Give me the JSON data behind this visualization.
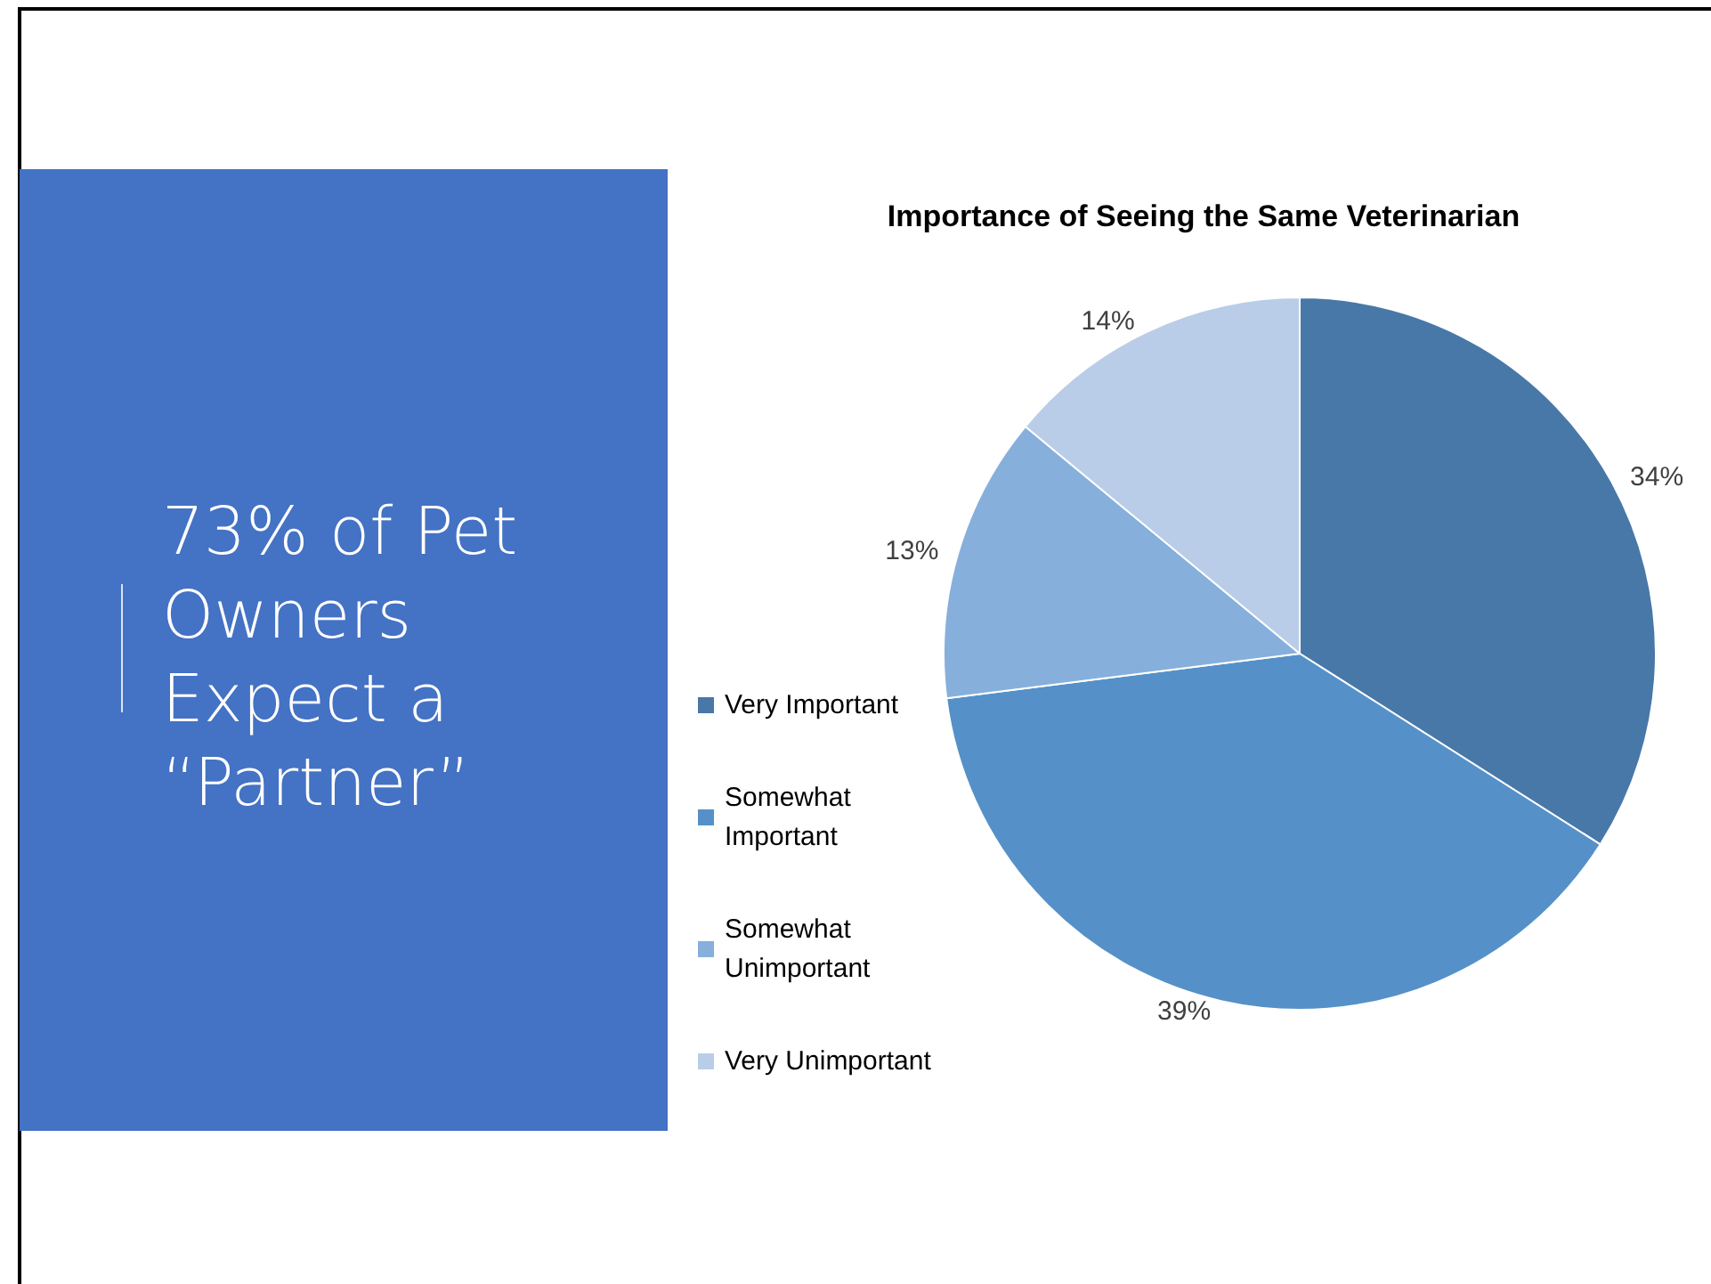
{
  "chart_data": [
    {
      "type": "other",
      "title": "73% of Pet Owners Expect a “Partner”"
    },
    {
      "type": "pie",
      "title": "Importance of Seeing the Same Veterinarian",
      "categories": [
        "Very Important",
        "Somewhat Important",
        "Somewhat Unimportant",
        "Very Unimportant"
      ],
      "values": [
        34,
        39,
        13,
        14
      ],
      "colors": [
        "#4878a8",
        "#5591c8",
        "#86afdc",
        "#b9cde8"
      ],
      "value_labels": [
        "34%",
        "39%",
        "13%",
        "14%"
      ],
      "legend": "left"
    }
  ]
}
